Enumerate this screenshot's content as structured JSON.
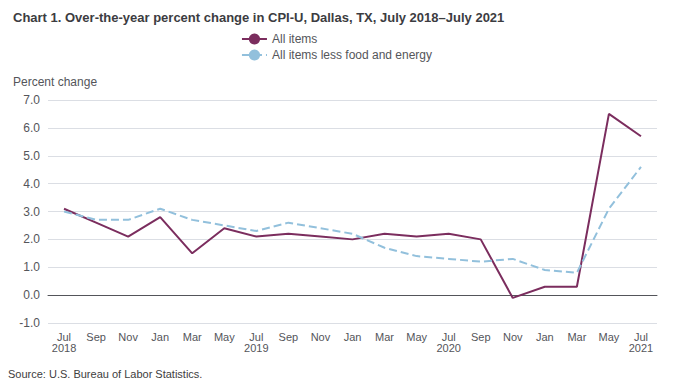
{
  "chart_data": {
    "type": "line",
    "title": "Chart 1. Over-the-year percent change in CPI-U, Dallas, TX, July 2018–July 2021",
    "ylabel": "Percent change",
    "source": "Source: U.S. Bureau of Labor Statistics.",
    "categories": [
      "Jul\n2018",
      "Sep",
      "Nov",
      "Jan",
      "Mar",
      "May",
      "Jul\n2019",
      "Sep",
      "Nov",
      "Jan",
      "Mar",
      "May",
      "Jul\n2020",
      "Sep",
      "Nov",
      "Jan",
      "Mar",
      "May",
      "Jul\n2021"
    ],
    "series": [
      {
        "name": "All items",
        "color": "#7B2D5E",
        "line_style": "solid",
        "values": [
          3.1,
          2.6,
          2.1,
          2.8,
          1.5,
          2.4,
          2.1,
          2.2,
          2.1,
          2.0,
          2.2,
          2.1,
          2.2,
          2.0,
          -0.1,
          0.3,
          0.3,
          6.5,
          5.7
        ]
      },
      {
        "name": "All items less food and energy",
        "color": "#92C0DC",
        "line_style": "dashed",
        "values": [
          3.0,
          2.7,
          2.7,
          3.1,
          2.7,
          2.5,
          2.3,
          2.6,
          2.4,
          2.2,
          1.7,
          1.4,
          1.3,
          1.2,
          1.3,
          0.9,
          0.8,
          3.1,
          4.6
        ]
      }
    ],
    "ylim": [
      -1.0,
      7.0
    ],
    "yticks": [
      {
        "value": -1.0,
        "label": "-1.0"
      },
      {
        "value": 0.0,
        "label": "0.0"
      },
      {
        "value": 1.0,
        "label": "1.0"
      },
      {
        "value": 2.0,
        "label": "2.0"
      },
      {
        "value": 3.0,
        "label": "3.0"
      },
      {
        "value": 4.0,
        "label": "4.0"
      },
      {
        "value": 5.0,
        "label": "5.0"
      },
      {
        "value": 6.0,
        "label": "6.0"
      },
      {
        "value": 7.0,
        "label": "7.0"
      }
    ],
    "grid": true,
    "legend": "top"
  }
}
